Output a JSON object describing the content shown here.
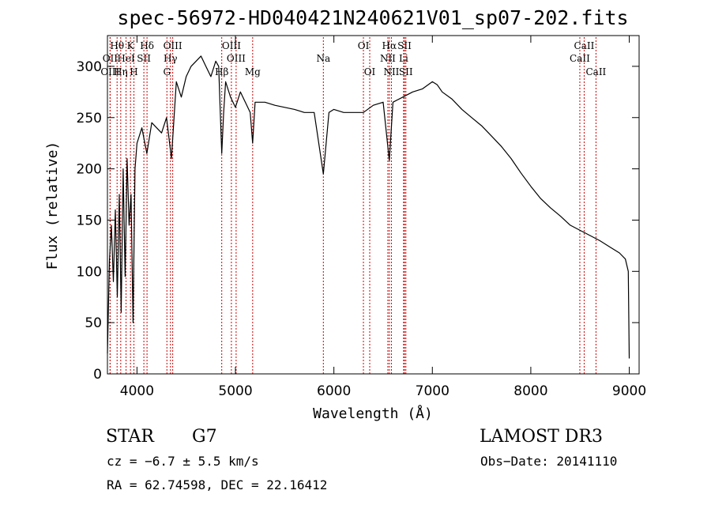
{
  "chart_data": {
    "type": "line",
    "title": "spec-56972-HD040421N240621V01_sp07-202.fits",
    "xlabel": "Wavelength (Å)",
    "ylabel": "Flux (relative)",
    "xlim": [
      3700,
      9100
    ],
    "ylim": [
      0,
      330
    ],
    "x_ticks": [
      4000,
      5000,
      6000,
      7000,
      8000,
      9000
    ],
    "y_ticks": [
      0,
      50,
      100,
      150,
      200,
      250,
      300
    ],
    "grid": false,
    "series": [
      {
        "x": [
          3700,
          3720,
          3740,
          3760,
          3780,
          3800,
          3820,
          3840,
          3860,
          3880,
          3900,
          3920,
          3940,
          3960,
          3980,
          4000,
          4050,
          4100,
          4150,
          4200,
          4250,
          4300,
          4350,
          4400,
          4450,
          4500,
          4550,
          4600,
          4650,
          4700,
          4750,
          4800,
          4830,
          4850,
          4861,
          4880,
          4900,
          4950,
          5000,
          5050,
          5100,
          5150,
          5175,
          5200,
          5300,
          5400,
          5500,
          5600,
          5700,
          5800,
          5893,
          5950,
          6000,
          6100,
          6200,
          6300,
          6400,
          6500,
          6563,
          6600,
          6700,
          6800,
          6900,
          7000,
          7050,
          7100,
          7200,
          7300,
          7400,
          7500,
          7600,
          7700,
          7800,
          7900,
          8000,
          8100,
          8200,
          8300,
          8400,
          8500,
          8600,
          8700,
          8800,
          8900,
          8960,
          8990,
          9000
        ],
        "y": [
          20,
          110,
          145,
          90,
          160,
          75,
          175,
          60,
          200,
          95,
          210,
          145,
          175,
          50,
          200,
          225,
          240,
          215,
          245,
          240,
          235,
          250,
          210,
          285,
          270,
          290,
          300,
          305,
          310,
          300,
          290,
          305,
          300,
          245,
          215,
          255,
          285,
          270,
          260,
          275,
          265,
          255,
          225,
          265,
          265,
          262,
          260,
          258,
          255,
          255,
          195,
          255,
          258,
          255,
          255,
          255,
          262,
          265,
          208,
          265,
          270,
          275,
          278,
          285,
          282,
          275,
          268,
          258,
          250,
          242,
          232,
          222,
          210,
          196,
          183,
          171,
          162,
          154,
          145,
          140,
          135,
          130,
          124,
          118,
          112,
          100,
          15
        ]
      }
    ],
    "annotations": [
      {
        "label": "Hθ",
        "x": 3798,
        "row": 1
      },
      {
        "label": "OII",
        "x": 3727,
        "row": 2
      },
      {
        "label": "OIII",
        "x": 3727,
        "row": 3
      },
      {
        "label": "K",
        "x": 3934,
        "row": 1
      },
      {
        "label": "HeI",
        "x": 3889,
        "row": 2
      },
      {
        "label": "Hη",
        "x": 3835,
        "row": 3
      },
      {
        "label": "SII",
        "x": 4070,
        "row": 2
      },
      {
        "label": "H",
        "x": 3969,
        "row": 3
      },
      {
        "label": "Hδ",
        "x": 4102,
        "row": 1
      },
      {
        "label": "OIII",
        "x": 4363,
        "row": 1
      },
      {
        "label": "Hγ",
        "x": 4340,
        "row": 2
      },
      {
        "label": "G",
        "x": 4304,
        "row": 3
      },
      {
        "label": "Hβ",
        "x": 4861,
        "row": 3
      },
      {
        "label": "OIII",
        "x": 4959,
        "row": 1
      },
      {
        "label": "OIII",
        "x": 5007,
        "row": 2
      },
      {
        "label": "Mg",
        "x": 5175,
        "row": 3
      },
      {
        "label": "Na",
        "x": 5893,
        "row": 2
      },
      {
        "label": "OI",
        "x": 6300,
        "row": 1
      },
      {
        "label": "OI",
        "x": 6364,
        "row": 3
      },
      {
        "label": "Hα",
        "x": 6563,
        "row": 1
      },
      {
        "label": "NII",
        "x": 6548,
        "row": 2
      },
      {
        "label": "NII",
        "x": 6584,
        "row": 3
      },
      {
        "label": "SII",
        "x": 6717,
        "row": 1
      },
      {
        "label": "Li",
        "x": 6708,
        "row": 2
      },
      {
        "label": "SII",
        "x": 6731,
        "row": 3
      },
      {
        "label": "CaII",
        "x": 8542,
        "row": 1
      },
      {
        "label": "CaII",
        "x": 8498,
        "row": 2
      },
      {
        "label": "CaII",
        "x": 8662,
        "row": 3
      }
    ]
  },
  "info": {
    "object_class": "STAR",
    "subclass": "G7",
    "survey": "LAMOST DR3",
    "redshift_text": "cz = −6.7 ± 5.5 km/s",
    "obs_date": "Obs−Date: 20141110",
    "coords": "RA =  62.74598, DEC =  22.16412"
  },
  "colors": {
    "line_markers": "#cc0000",
    "spectrum": "#000000"
  }
}
